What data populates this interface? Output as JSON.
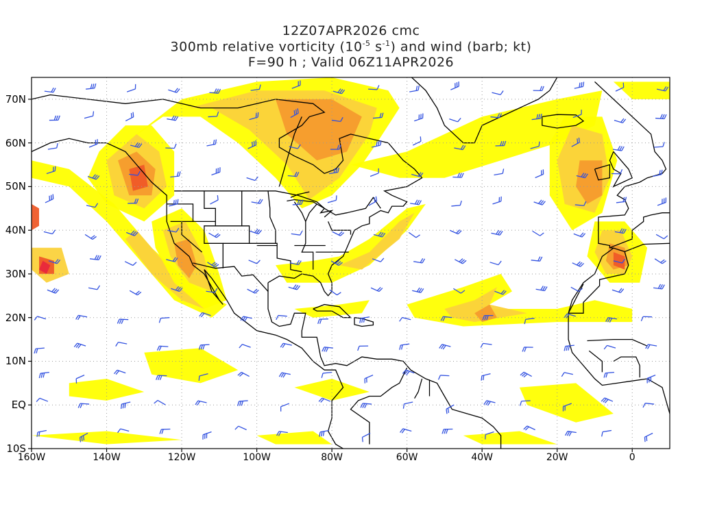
{
  "header": {
    "line1": "12Z07APR2026 cmc",
    "line2_pre": "300mb relative vorticity (10",
    "line2_sup1": "-5",
    "line2_mid": " s",
    "line2_sup2": "-1",
    "line2_post": ") and wind (barb; kt)",
    "line3": "F=90 h ; Valid 06Z11APR2026"
  },
  "map": {
    "projection": "latlon",
    "lon_range": [
      -160,
      10
    ],
    "lat_range": [
      -10,
      75
    ],
    "grid": "dotted",
    "y_ticks": [
      "70N",
      "60N",
      "50N",
      "40N",
      "30N",
      "20N",
      "10N",
      "EQ",
      "10S"
    ],
    "x_ticks": [
      "160W",
      "140W",
      "120W",
      "100W",
      "80W",
      "60W",
      "40W",
      "20W",
      "0"
    ],
    "colors": {
      "level1": "#ffff00",
      "level2": "#fbd23c",
      "level3": "#f59b2d",
      "level4": "#ef5a28",
      "level5": "#e8283c",
      "barb": "#3050e0",
      "coast": "#000000"
    }
  }
}
